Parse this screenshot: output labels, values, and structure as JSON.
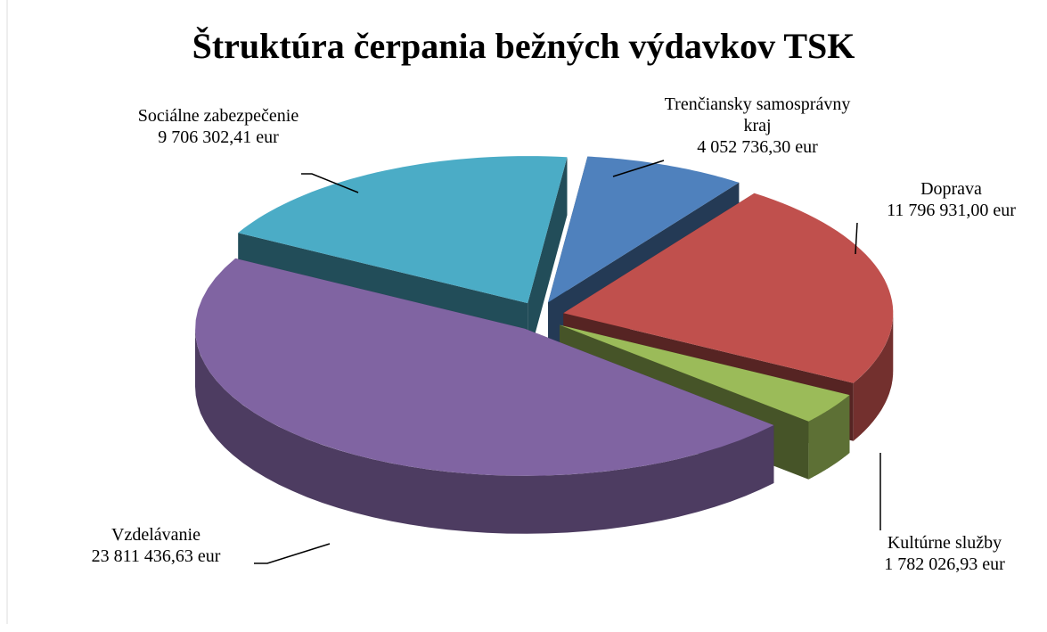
{
  "chart_data": {
    "type": "pie3d",
    "title": "Štruktúra čerpania bežných výdavkov TSK",
    "categories": [
      "Trenčiansky samosprávny kraj",
      "Doprava",
      "Kultúrne služby",
      "Vzdelávanie",
      "Sociálne zabezpečenie"
    ],
    "values": [
      4052736.3,
      11796931.0,
      1782026.93,
      23811436.63,
      9706302.41
    ],
    "value_labels": [
      "4 052 736,30 eur",
      "11 796 931,00 eur",
      "1 782 026,93 eur",
      "23 811 436,63 eur",
      "9 706 302,41 eur"
    ],
    "colors": [
      "#4f81bd",
      "#c0504d",
      "#9bbb59",
      "#8064a2",
      "#4bacc6"
    ]
  }
}
